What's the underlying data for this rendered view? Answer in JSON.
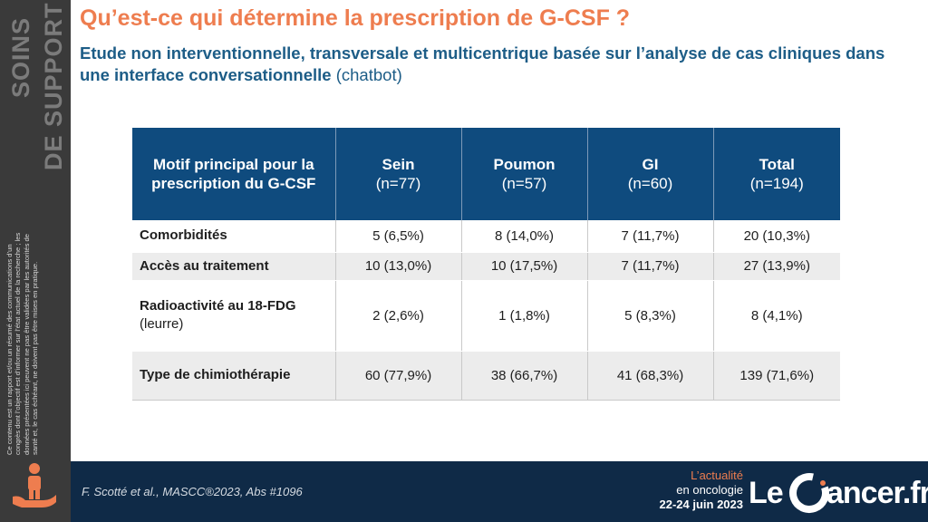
{
  "sidebar": {
    "title_line1": "SOINS",
    "title_line2": "DE SUPPORT",
    "disclaimer": "Ce contenu est un rapport et/ou un résumé des communications d’un congrès dont l’objectif est d’informer sur l’état actuel de la recherche ; les données présentées ici peuvent ne pas être validées par les autorités de santé et, le cas échéant, ne doivent pas être mises en pratique."
  },
  "header": {
    "title": "Qu’est-ce qui détermine la prescription de G-CSF ?",
    "subtitle_bold": "Etude non interventionnelle, transversale et multicentrique basée sur l’analyse de cas cliniques dans une interface conversationnelle",
    "subtitle_light": "(chatbot)"
  },
  "table": {
    "header": {
      "motif": "Motif principal pour la prescription du G-CSF",
      "cols": [
        {
          "name": "Sein",
          "n": "(n=77)"
        },
        {
          "name": "Poumon",
          "n": "(n=57)"
        },
        {
          "name": "GI",
          "n": "(n=60)"
        },
        {
          "name": "Total",
          "n": "(n=194)"
        }
      ]
    },
    "rows": [
      {
        "label": "Comorbidités",
        "sub": "",
        "values": [
          "5 (6,5%)",
          "8 (14,0%)",
          "7 (11,7%)",
          "20 (10,3%)"
        ]
      },
      {
        "label": "Accès au traitement",
        "sub": "",
        "values": [
          "10 (13,0%)",
          "10 (17,5%)",
          "7 (11,7%)",
          "27 (13,9%)"
        ]
      },
      {
        "label": "Radioactivité au 18-FDG",
        "sub": "(leurre)",
        "values": [
          "2 (2,6%)",
          "1 (1,8%)",
          "5 (8,3%)",
          "8 (4,1%)"
        ]
      },
      {
        "label": "Type de chimiothérapie",
        "sub": "",
        "values": [
          "60 (77,9%)",
          "38 (66,7%)",
          "41 (68,3%)",
          "139 (71,6%)"
        ]
      }
    ]
  },
  "footer": {
    "citation": "F. Scotté et al., MASCC®2023, Abs #1096",
    "event_line1": "L’actualité",
    "event_line2": "en oncologie",
    "event_line3": "22-24 juin 2023",
    "logo_le": "Le",
    "logo_rest": "ancer.fr"
  },
  "colors": {
    "accent_orange": "#ee7d4f",
    "title_blue": "#1d5d87",
    "table_header": "#0f4b7e",
    "footer_bg": "#0f2a47",
    "sidebar_bg": "#3a3a3a"
  }
}
